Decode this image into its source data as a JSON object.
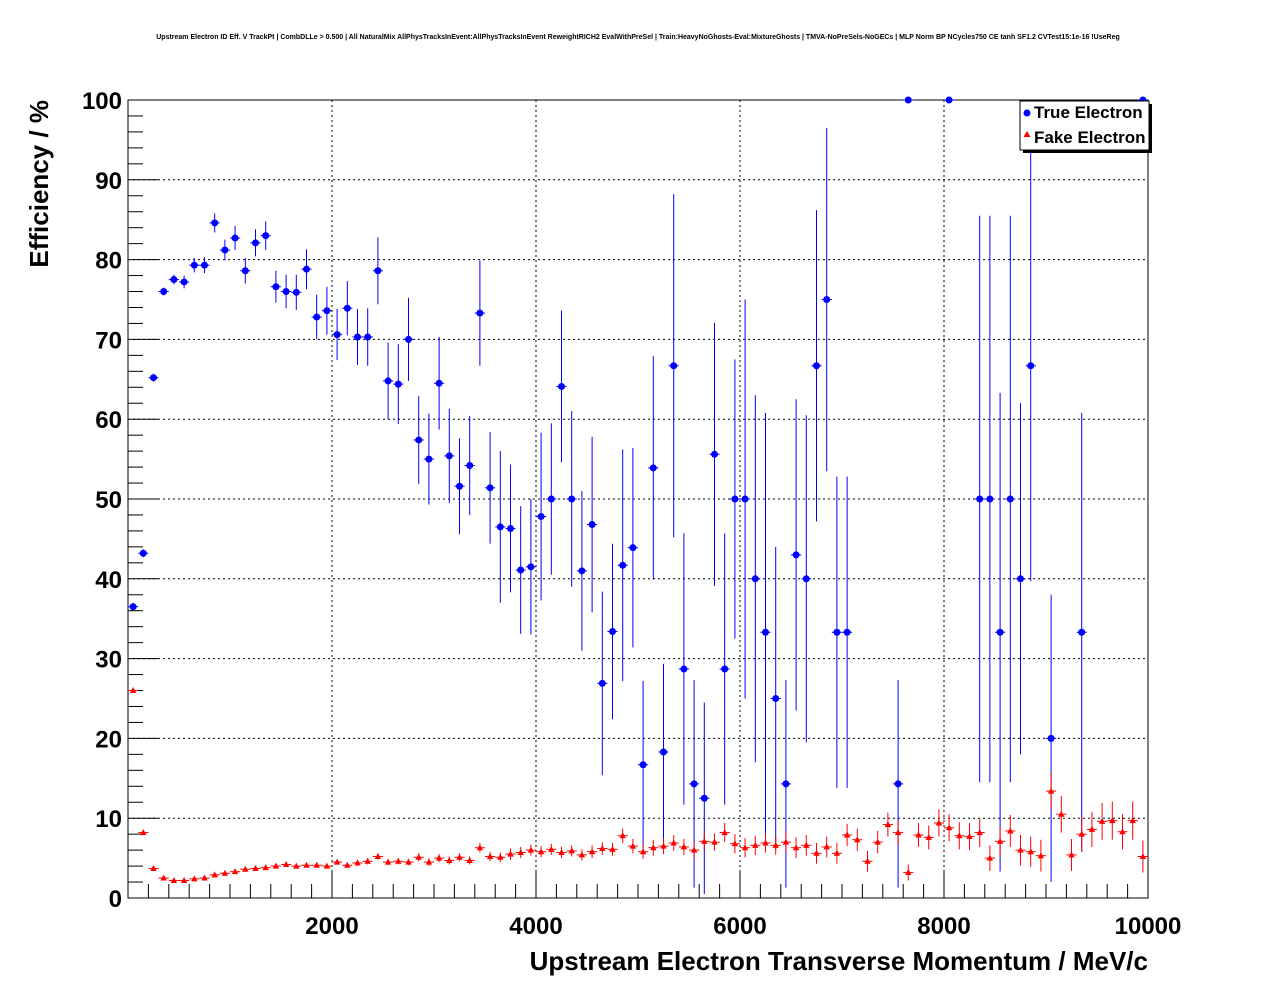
{
  "chart_data": {
    "type": "scatter",
    "title": "Upstream Electron ID Eff. V TrackPt | CombDLLe > 0.500 | All NaturalMix AllPhysTracksInEvent:AllPhysTracksInEvent ReweightRICH2 EvalWithPreSel | Train:HeavyNoGhosts-Eval:MixtureGhosts | TMVA-NoPreSels-NoGECs | MLP Norm BP NCycles750 CE tanh SF1.2 CVTest15:1e-16 !UseReg",
    "xlabel": "Upstream Electron Transverse Momentum / MeV/c",
    "ylabel": "Efficiency / %",
    "xlim": [
      0,
      10000
    ],
    "ylim": [
      0,
      100
    ],
    "x_ticks": [
      "2000",
      "4000",
      "6000",
      "8000",
      "10000"
    ],
    "y_ticks": [
      "0",
      "10",
      "20",
      "30",
      "40",
      "50",
      "60",
      "70",
      "80",
      "90",
      "100"
    ],
    "grid": true,
    "legend_position": "top-right",
    "series": [
      {
        "name": "True Electron",
        "color": "#0000ff",
        "marker": "circle",
        "points": [
          [
            50,
            36.5,
            0.5
          ],
          [
            150,
            43.2,
            0.5
          ],
          [
            250,
            65.2,
            0.5
          ],
          [
            350,
            76,
            0.5
          ],
          [
            450,
            77.5,
            0.6
          ],
          [
            550,
            77.2,
            0.8
          ],
          [
            650,
            79.3,
            0.9
          ],
          [
            750,
            79.3,
            1
          ],
          [
            850,
            84.6,
            1.2
          ],
          [
            950,
            81.2,
            1.3
          ],
          [
            1050,
            82.7,
            1.5
          ],
          [
            1150,
            78.6,
            1.6
          ],
          [
            1250,
            82.1,
            1.7
          ],
          [
            1350,
            83,
            1.8
          ],
          [
            1450,
            76.6,
            2
          ],
          [
            1550,
            76,
            2.1
          ],
          [
            1650,
            75.9,
            2.2
          ],
          [
            1750,
            78.8,
            2.5
          ],
          [
            1850,
            72.8,
            2.8
          ],
          [
            1950,
            73.6,
            3
          ],
          [
            2050,
            70.6,
            3.2
          ],
          [
            2150,
            73.9,
            3.4
          ],
          [
            2250,
            70.3,
            3.5
          ],
          [
            2350,
            70.3,
            3.6
          ],
          [
            2450,
            78.6,
            4.2
          ],
          [
            2550,
            64.8,
            4.8
          ],
          [
            2650,
            64.4,
            5
          ],
          [
            2750,
            70,
            5.2
          ],
          [
            2850,
            57.4,
            5.5
          ],
          [
            2950,
            55,
            5.7
          ],
          [
            3050,
            64.5,
            5.8
          ],
          [
            3150,
            55.4,
            5.9
          ],
          [
            3250,
            51.6,
            6
          ],
          [
            3350,
            54.2,
            6.2
          ],
          [
            3450,
            73.3,
            6.6
          ],
          [
            3550,
            51.4,
            7
          ],
          [
            3650,
            46.5,
            9.5
          ],
          [
            3750,
            46.3,
            8
          ],
          [
            3850,
            41.1,
            8
          ],
          [
            3950,
            41.5,
            8.5
          ],
          [
            4050,
            47.8,
            10.5
          ],
          [
            4150,
            50,
            9.5
          ],
          [
            4250,
            64.1,
            9.5
          ],
          [
            4350,
            50,
            11
          ],
          [
            4450,
            41,
            10
          ],
          [
            4550,
            46.8,
            11
          ],
          [
            4650,
            26.9,
            11.5
          ],
          [
            4750,
            33.4,
            11
          ],
          [
            4850,
            41.7,
            14.5
          ],
          [
            4950,
            43.9,
            12.5
          ],
          [
            5050,
            16.7,
            10.5
          ],
          [
            5150,
            53.9,
            14
          ],
          [
            5250,
            18.3,
            11
          ],
          [
            5350,
            66.7,
            21.5
          ],
          [
            5450,
            28.7,
            17
          ],
          [
            5550,
            14.3,
            13
          ],
          [
            5650,
            12.5,
            12
          ],
          [
            5750,
            55.6,
            16.5
          ],
          [
            5850,
            28.7,
            17
          ],
          [
            5950,
            50,
            17.5
          ],
          [
            6050,
            50,
            25
          ],
          [
            6150,
            40,
            23
          ],
          [
            6250,
            33.3,
            27.5
          ],
          [
            6350,
            25,
            19
          ],
          [
            6450,
            14.3,
            13
          ],
          [
            6550,
            43,
            19.5
          ],
          [
            6650,
            40,
            20.5
          ],
          [
            6750,
            66.7,
            19.5
          ],
          [
            6850,
            75,
            21.5
          ],
          [
            6950,
            33.3,
            19.5
          ],
          [
            7050,
            33.3,
            19.5
          ],
          [
            7550,
            14.3,
            13
          ],
          [
            7650,
            100,
            0
          ],
          [
            8050,
            100,
            0
          ],
          [
            8350,
            50,
            35.5
          ],
          [
            8450,
            50,
            35.5
          ],
          [
            8550,
            33.3,
            30
          ],
          [
            8650,
            50,
            35.5
          ],
          [
            8750,
            40,
            22
          ],
          [
            8850,
            66.7,
            27
          ],
          [
            9050,
            20,
            18
          ],
          [
            9350,
            33.3,
            27.5
          ],
          [
            9950,
            100,
            0
          ]
        ]
      },
      {
        "name": "Fake Electron",
        "color": "#ff0000",
        "marker": "triangle",
        "points": [
          [
            50,
            26,
            0.3
          ],
          [
            150,
            8.2,
            0.2
          ],
          [
            250,
            3.7,
            0.2
          ],
          [
            350,
            2.5,
            0.2
          ],
          [
            450,
            2.2,
            0.2
          ],
          [
            550,
            2.2,
            0.2
          ],
          [
            650,
            2.4,
            0.2
          ],
          [
            750,
            2.5,
            0.2
          ],
          [
            850,
            2.9,
            0.2
          ],
          [
            950,
            3.1,
            0.2
          ],
          [
            1050,
            3.3,
            0.2
          ],
          [
            1150,
            3.6,
            0.2
          ],
          [
            1250,
            3.7,
            0.2
          ],
          [
            1350,
            3.8,
            0.2
          ],
          [
            1450,
            4,
            0.3
          ],
          [
            1550,
            4.2,
            0.3
          ],
          [
            1650,
            4,
            0.3
          ],
          [
            1750,
            4.1,
            0.3
          ],
          [
            1850,
            4.1,
            0.3
          ],
          [
            1950,
            4,
            0.3
          ],
          [
            2050,
            4.5,
            0.3
          ],
          [
            2150,
            4.1,
            0.3
          ],
          [
            2250,
            4.4,
            0.4
          ],
          [
            2350,
            4.6,
            0.4
          ],
          [
            2450,
            5.2,
            0.4
          ],
          [
            2550,
            4.5,
            0.4
          ],
          [
            2650,
            4.6,
            0.4
          ],
          [
            2750,
            4.5,
            0.4
          ],
          [
            2850,
            5.1,
            0.5
          ],
          [
            2950,
            4.5,
            0.5
          ],
          [
            3050,
            5,
            0.5
          ],
          [
            3150,
            4.7,
            0.5
          ],
          [
            3250,
            5.1,
            0.5
          ],
          [
            3350,
            4.7,
            0.5
          ],
          [
            3450,
            6.3,
            0.6
          ],
          [
            3550,
            5.2,
            0.6
          ],
          [
            3650,
            5.1,
            0.6
          ],
          [
            3750,
            5.5,
            0.7
          ],
          [
            3850,
            5.7,
            0.7
          ],
          [
            3950,
            6,
            0.7
          ],
          [
            4050,
            5.8,
            0.7
          ],
          [
            4150,
            6.1,
            0.7
          ],
          [
            4250,
            5.7,
            0.7
          ],
          [
            4350,
            5.9,
            0.7
          ],
          [
            4450,
            5.4,
            0.7
          ],
          [
            4550,
            5.8,
            0.8
          ],
          [
            4650,
            6.2,
            0.8
          ],
          [
            4750,
            6.1,
            0.8
          ],
          [
            4850,
            7.8,
            0.9
          ],
          [
            4950,
            6.5,
            0.9
          ],
          [
            5050,
            5.8,
            0.9
          ],
          [
            5150,
            6.3,
            1
          ],
          [
            5250,
            6.5,
            1
          ],
          [
            5350,
            6.9,
            1
          ],
          [
            5450,
            6.4,
            1
          ],
          [
            5550,
            6,
            1.1
          ],
          [
            5650,
            7.1,
            1.1
          ],
          [
            5750,
            7,
            1.1
          ],
          [
            5850,
            8.2,
            1.2
          ],
          [
            5950,
            6.8,
            1.2
          ],
          [
            6050,
            6.3,
            1.2
          ],
          [
            6150,
            6.6,
            1.2
          ],
          [
            6250,
            6.9,
            1.2
          ],
          [
            6350,
            6.6,
            1.2
          ],
          [
            6450,
            7,
            1.3
          ],
          [
            6550,
            6.3,
            1.3
          ],
          [
            6650,
            6.6,
            1.3
          ],
          [
            6750,
            5.6,
            1.3
          ],
          [
            6850,
            6.4,
            1.3
          ],
          [
            6950,
            5.6,
            1.3
          ],
          [
            7050,
            7.9,
            1.4
          ],
          [
            7150,
            7.3,
            1.4
          ],
          [
            7250,
            4.6,
            1.3
          ],
          [
            7350,
            7,
            1.4
          ],
          [
            7450,
            9.2,
            1.5
          ],
          [
            7550,
            8.2,
            1.5
          ],
          [
            7650,
            3.2,
            1
          ],
          [
            7750,
            7.9,
            1.5
          ],
          [
            7850,
            7.6,
            1.5
          ],
          [
            7950,
            9.4,
            1.7
          ],
          [
            8050,
            8.8,
            1.7
          ],
          [
            8150,
            7.8,
            1.7
          ],
          [
            8250,
            7.7,
            1.7
          ],
          [
            8350,
            8.2,
            1.8
          ],
          [
            8450,
            5,
            1.6
          ],
          [
            8550,
            7.1,
            1.9
          ],
          [
            8650,
            8.4,
            2
          ],
          [
            8750,
            6,
            1.9
          ],
          [
            8850,
            5.8,
            1.9
          ],
          [
            8950,
            5.3,
            2
          ],
          [
            9050,
            13.4,
            2.3
          ],
          [
            9150,
            10.5,
            2.3
          ],
          [
            9250,
            5.4,
            2
          ],
          [
            9350,
            8,
            2.2
          ],
          [
            9450,
            8.6,
            2.2
          ],
          [
            9550,
            9.6,
            2.3
          ],
          [
            9650,
            9.7,
            2.4
          ],
          [
            9750,
            8.3,
            2.2
          ],
          [
            9850,
            9.7,
            2.4
          ],
          [
            9950,
            5.2,
            2
          ]
        ]
      }
    ]
  }
}
